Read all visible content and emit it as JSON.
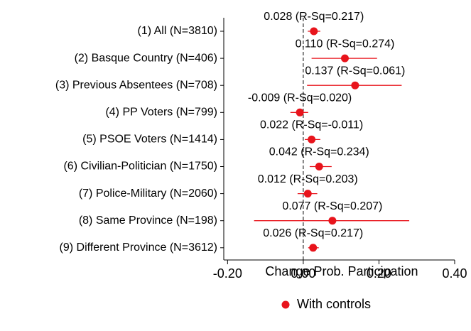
{
  "chart_data": {
    "type": "coefplot",
    "xlabel": "Change Prob. Participation",
    "categories": [
      "(1) All (N=3810)",
      "(2) Basque Country (N=406)",
      "(3) Previous Absentees (N=708)",
      "(4) PP Voters (N=799)",
      "(5) PSOE Voters (N=1414)",
      "(6) Civilian-Politician (N=1750)",
      "(7) Police-Military (N=2060)",
      "(8) Same Province (N=198)",
      "(9) Different Province (N=3612)"
    ],
    "series": [
      {
        "name": "With controls",
        "color": "#e8141c",
        "values": [
          0.028,
          0.11,
          0.137,
          -0.009,
          0.022,
          0.042,
          0.012,
          0.077,
          0.026
        ],
        "value_labels": [
          "0.028 (R-Sq=0.217)",
          "0.110 (R-Sq=0.274)",
          "0.137 (R-Sq=0.061)",
          "-0.009 (R-Sq=0.020)",
          "0.022 (R-Sq=-0.011)",
          "0.042 (R-Sq=0.234)",
          "0.012 (R-Sq=0.203)",
          "0.077 (R-Sq=0.207)",
          "0.026 (R-Sq=0.217)"
        ],
        "ci_low": [
          0.012,
          0.022,
          0.01,
          -0.034,
          0.004,
          0.017,
          -0.015,
          -0.13,
          0.013
        ],
        "ci_high": [
          0.045,
          0.195,
          0.26,
          0.013,
          0.045,
          0.075,
          0.037,
          0.28,
          0.041
        ]
      }
    ],
    "xlim": [
      -0.21,
      0.4
    ],
    "xticks": [
      {
        "value": -0.2,
        "label": "-0.20"
      },
      {
        "value": 0,
        "label": "0.00"
      },
      {
        "value": 0.2,
        "label": "0.20"
      },
      {
        "value": 0.4,
        "label": "0.40"
      }
    ],
    "reference_line": 0,
    "legend": "bottom"
  }
}
